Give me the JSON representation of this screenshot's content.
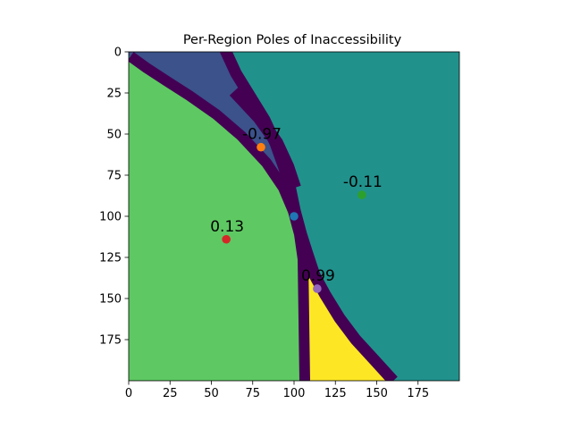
{
  "chart_data": {
    "type": "heatmap",
    "title": "Per-Region Poles of Inaccessibility",
    "xlim": [
      0,
      200
    ],
    "ylim": [
      200,
      0
    ],
    "x_ticks": [
      0,
      25,
      50,
      75,
      100,
      125,
      150,
      175
    ],
    "y_ticks": [
      0,
      25,
      50,
      75,
      100,
      125,
      150,
      175
    ],
    "grid": false,
    "legend": "none",
    "colormap": "viridis",
    "regions": [
      {
        "color": "#3b528b"
      },
      {
        "color": "#21918c"
      },
      {
        "color": "#5ec962"
      },
      {
        "color": "#fde725"
      },
      {
        "color": "#440154"
      }
    ],
    "points": [
      {
        "x": 80,
        "y": 58,
        "label": "-0.97",
        "color": "#ff7f0e"
      },
      {
        "x": 141,
        "y": 87,
        "label": "-0.11",
        "color": "#2ca02c"
      },
      {
        "x": 100,
        "y": 100,
        "label": "",
        "color": "#1f77b4"
      },
      {
        "x": 59,
        "y": 114,
        "label": "0.13",
        "color": "#d62728"
      },
      {
        "x": 114,
        "y": 144,
        "label": "0.99",
        "color": "#9467bd"
      }
    ]
  }
}
